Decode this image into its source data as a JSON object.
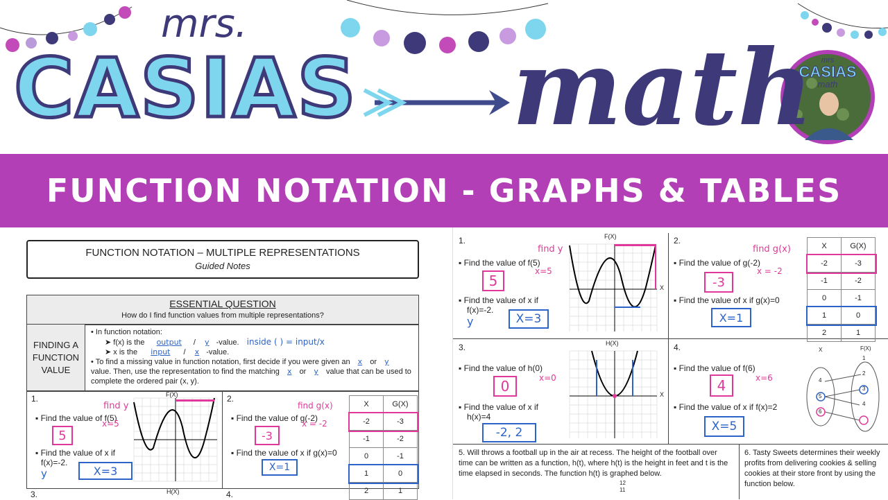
{
  "header": {
    "brand_top": "mrs.",
    "brand_main": "CASIAS",
    "brand_math": "math",
    "avatar_text_1": "mrs",
    "avatar_text_2": "CASIAS",
    "avatar_text_3": "math"
  },
  "title_strip": "FUNCTION NOTATION - GRAPHS & TABLES",
  "left_sheet": {
    "title": "FUNCTION NOTATION – MULTIPLE REPRESENTATIONS",
    "subtitle": "Guided Notes",
    "eq_heading": "ESSENTIAL QUESTION",
    "eq_text": "How do I find function values from multiple representations?",
    "side_label": "FINDING A FUNCTION VALUE",
    "bullet1": "In function notation:",
    "b1a_pre": "f(x) is the",
    "b1a_ans": "output",
    "b1a_ans2": "y",
    "b1a_post": "-value.",
    "b1b_pre": "x is the",
    "b1b_ans": "input",
    "b1b_ans2": "x",
    "b1b_post": "-value.",
    "margin_note": "inside ( ) = input/x",
    "bullet2_a": "To find a missing value in function notation, first decide if you were given an",
    "bullet2_ans1": "x",
    "bullet2_or": "or",
    "bullet2_ans2": "y",
    "bullet2_b": "value. Then, use the representation to find the matching",
    "bullet2_ans3": "x",
    "bullet2_or2": "or",
    "bullet2_ans4": "y",
    "bullet2_c": "value",
    "bullet2_d": "that can be used to complete the ordered pair (x, y).",
    "p1_num": "1.",
    "p1_q1": "Find the value of f(5)",
    "p1_note": "find y",
    "p1_note2": "x=5",
    "p1_ans1": "5",
    "p1_q2": "Find the value of x if",
    "p1_q2b": "f(x)=-2.",
    "p1_y": "y",
    "p1_ans2": "X=3",
    "p1_graph_label": "F(X)",
    "p2_num": "2.",
    "p2_q1": "Find the value of g(-2)",
    "p2_note": "find g(x)",
    "p2_note2": "x = -2",
    "p2_ans1": "-3",
    "p2_q2": "Find the value of x if g(x)=0",
    "p2_ans2": "X=1",
    "table_headers": [
      "X",
      "G(X)"
    ],
    "table_rows": [
      [
        "-2",
        "-3"
      ],
      [
        "-1",
        "-2"
      ],
      [
        "0",
        "-1"
      ],
      [
        "1",
        "0"
      ],
      [
        "2",
        "1"
      ]
    ],
    "bottom_left_num": "3.",
    "bottom_mid_label": "H(X)",
    "bottom_right_num": "4."
  },
  "right_sheet": {
    "p1_num": "1.",
    "p1_q1": "Find the value of f(5)",
    "p1_note": "find y",
    "p1_note2": "x=5",
    "p1_ans1": "5",
    "p1_q2": "Find the value of x if",
    "p1_q2b": "f(x)=-2.",
    "p1_y": "y",
    "p1_ans2": "X=3",
    "p1_graph_label": "F(X)",
    "p1_axis_x": "X",
    "p2_num": "2.",
    "p2_q1": "Find the value of g(-2)",
    "p2_note": "find g(x)",
    "p2_note2": "x = -2",
    "p2_ans1": "-3",
    "p2_q2": "Find the value of x if g(x)=0",
    "p2_ans2": "X=1",
    "table_headers": [
      "X",
      "G(X)"
    ],
    "table_rows": [
      [
        "-2",
        "-3"
      ],
      [
        "-1",
        "-2"
      ],
      [
        "0",
        "-1"
      ],
      [
        "1",
        "0"
      ],
      [
        "2",
        "1"
      ]
    ],
    "p3_num": "3.",
    "p3_q1": "Find the value of h(0)",
    "p3_note": "x=0",
    "p3_ans1": "0",
    "p3_q2": "Find the value of x if",
    "p3_q2b": "h(x)=4",
    "p3_ans2": "-2, 2",
    "p3_graph_label": "H(X)",
    "p3_axis_x": "X",
    "p4_num": "4.",
    "p4_q1": "Find the value of f(6)",
    "p4_note": "x=6",
    "p4_ans1": "4",
    "p4_q2": "Find the value of x if f(x)=2",
    "p4_ans2": "X=5",
    "map_x_label": "X",
    "map_y_label": "F(X)",
    "map_x": [
      "4",
      "5",
      "6"
    ],
    "map_y": [
      "1",
      "2",
      "3",
      "4"
    ],
    "p5_text": "5. Will throws a football up in the air at recess. The height of the football over time can be written as a function, h(t), where h(t) is the height in feet and t is the time elapsed in seconds. The function h(t) is graphed below.",
    "p5_ticks": [
      "12",
      "11"
    ],
    "p6_text": "6. Tasty Sweets determines their weekly profits from delivering cookies & selling cookies at their store front by using the function below."
  }
}
